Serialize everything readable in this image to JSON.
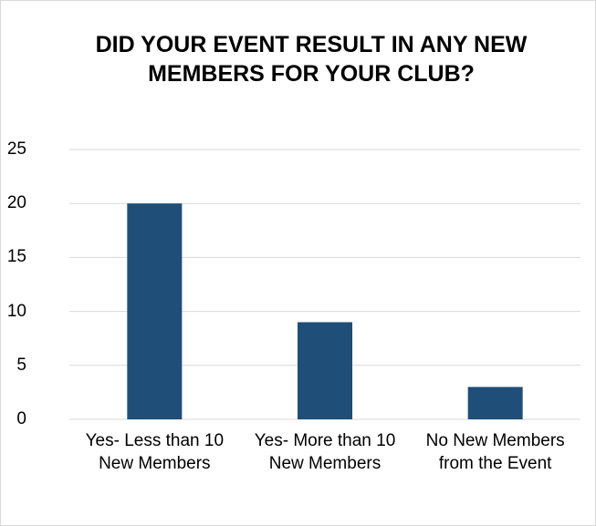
{
  "chart_data": {
    "type": "bar",
    "title": "DID YOUR EVENT RESULT IN ANY NEW MEMBERS FOR YOUR CLUB?",
    "categories": [
      "Yes- Less than 10 New Members",
      "Yes- More than 10 New Members",
      "No New Members from the Event"
    ],
    "values": [
      20,
      9,
      3
    ],
    "color": "#1f4e79",
    "ylim": [
      0,
      25
    ],
    "yticks": [
      0,
      5,
      10,
      15,
      20,
      25
    ],
    "grid": true
  }
}
